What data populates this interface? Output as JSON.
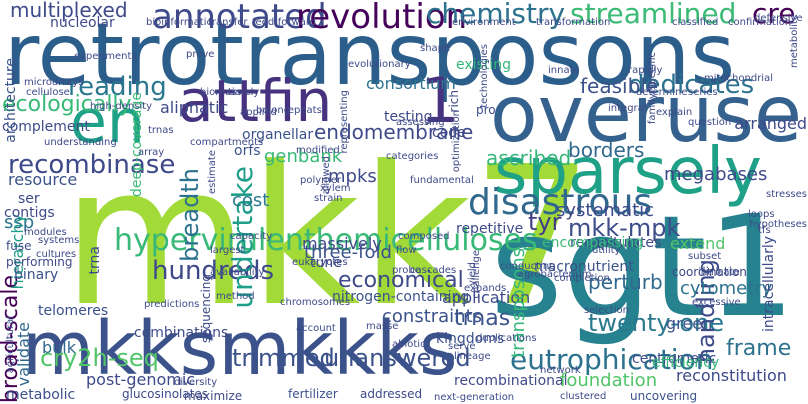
{
  "words": [
    {
      "text": "retrotransposons",
      "color": "#2c5e8c"
    },
    {
      "text": "mkk7",
      "color": "#a2da37"
    },
    {
      "text": "sgt1",
      "color": "#26828e"
    },
    {
      "text": "overuse",
      "color": "#34618d"
    },
    {
      "text": "mkksmkkks",
      "color": "#3b528b"
    },
    {
      "text": "sparsely",
      "color": "#1fa187"
    },
    {
      "text": "attfin",
      "color": "#46327e"
    },
    {
      "text": "en",
      "color": "#1fa187"
    },
    {
      "text": "1",
      "color": "#46327e"
    },
    {
      "text": "hypervirulenthemicelluloses",
      "color": "#38b977"
    },
    {
      "text": "disastrous",
      "color": "#31688e"
    },
    {
      "text": "annotated",
      "color": "#3e4a89"
    },
    {
      "text": "revolution",
      "color": "#44015a"
    },
    {
      "text": "chemistry",
      "color": "#2c728e"
    },
    {
      "text": "streamlined",
      "color": "#3bbb75"
    },
    {
      "text": "cre",
      "color": "#440154"
    },
    {
      "text": "reading",
      "color": "#29788e"
    },
    {
      "text": "dedicates",
      "color": "#2c728e"
    },
    {
      "text": "ecologically",
      "color": "#38b977"
    },
    {
      "text": "recombinase",
      "color": "#3e4989"
    },
    {
      "text": "hundreds",
      "color": "#3e4989"
    },
    {
      "text": "undertake",
      "color": "#1f9e89"
    },
    {
      "text": "mkk-mpk",
      "color": "#3d4d8a"
    },
    {
      "text": "tyr",
      "color": "#433d84"
    },
    {
      "text": "eutrophication",
      "color": "#2c728e"
    },
    {
      "text": "trimmed",
      "color": "#3b528b"
    },
    {
      "text": "unanswered",
      "color": "#3b528b"
    },
    {
      "text": "cry2h-seq",
      "color": "#52c569"
    },
    {
      "text": "twenty-one",
      "color": "#29788e"
    },
    {
      "text": "handling",
      "color": "#3e4a89"
    },
    {
      "text": "breadth",
      "color": "#2c728e"
    },
    {
      "text": "broad-scale",
      "color": "#440154"
    },
    {
      "text": "economical",
      "color": "#3e4a89"
    },
    {
      "text": "ascribed",
      "color": "#35b779"
    },
    {
      "text": "borders",
      "color": "#31688e"
    },
    {
      "text": "multiplexed",
      "color": "#3e4a89"
    },
    {
      "text": "feasible",
      "color": "#3b528b"
    },
    {
      "text": "endomembrane",
      "color": "#3e4a89"
    },
    {
      "text": "trnas",
      "color": "#3b528b"
    },
    {
      "text": "frame",
      "color": "#2c728e"
    },
    {
      "text": "constraints",
      "color": "#3b528b"
    },
    {
      "text": "perturb",
      "color": "#31688e"
    },
    {
      "text": "cytometry",
      "color": "#2c728e"
    },
    {
      "text": "systematic",
      "color": "#3e4a89"
    },
    {
      "text": "genbank",
      "color": "#38b977"
    },
    {
      "text": "three-fold",
      "color": "#3b528b"
    },
    {
      "text": "megabases",
      "color": "#3e4a89"
    },
    {
      "text": "cost",
      "color": "#29788e"
    },
    {
      "text": "mpks",
      "color": "#3e4a89"
    },
    {
      "text": "ssp",
      "color": "#2c728e"
    },
    {
      "text": "resource",
      "color": "#3b528b"
    },
    {
      "text": "hierarchy",
      "color": "#1f9e89"
    },
    {
      "text": "contigs",
      "color": "#3e4a89"
    },
    {
      "text": "complement",
      "color": "#3e4a89"
    },
    {
      "text": "bulk",
      "color": "#31688e"
    },
    {
      "text": "validate",
      "color": "#31688e"
    },
    {
      "text": "telomeres",
      "color": "#3b528b"
    },
    {
      "text": "post-genomic",
      "color": "#3e4a89"
    },
    {
      "text": "metabolic",
      "color": "#3b528b"
    },
    {
      "text": "application",
      "color": "#3e4a89"
    },
    {
      "text": "transposons",
      "color": "#35b779"
    },
    {
      "text": "extend",
      "color": "#52c569"
    },
    {
      "text": "green",
      "color": "#3b528b"
    },
    {
      "text": "centromeric",
      "color": "#3e4a89"
    },
    {
      "text": "recapitulates",
      "color": "#3e4a89"
    },
    {
      "text": "encompassing",
      "color": "#38b977"
    },
    {
      "text": "repetitive",
      "color": "#3e4a89"
    },
    {
      "text": "massively",
      "color": "#3e4a89"
    },
    {
      "text": "tune",
      "color": "#3e4a89"
    },
    {
      "text": "combinations",
      "color": "#3e4a89"
    },
    {
      "text": "organellar",
      "color": "#3b528b"
    },
    {
      "text": "orfs",
      "color": "#3b528b"
    },
    {
      "text": "aliphatic",
      "color": "#3e4a89"
    },
    {
      "text": "existing",
      "color": "#35b779"
    },
    {
      "text": "consortium",
      "color": "#2c728e"
    },
    {
      "text": "testing",
      "color": "#3e4a89"
    },
    {
      "text": "nucleolar",
      "color": "#3e4a89"
    },
    {
      "text": "architecture",
      "color": "#3b528b"
    },
    {
      "text": "deep-coverage",
      "color": "#3bbb75"
    },
    {
      "text": "nitrogen-containing",
      "color": "#3b528b"
    },
    {
      "text": "macronutrient",
      "color": "#3b528b"
    },
    {
      "text": "kingdoms",
      "color": "#3b528b"
    },
    {
      "text": "recombinational",
      "color": "#3e4a89"
    },
    {
      "text": "foundation",
      "color": "#52c569"
    },
    {
      "text": "reconstitution",
      "color": "#3e4a89"
    },
    {
      "text": "efficiency",
      "color": "#35b779"
    },
    {
      "text": "coordination",
      "color": "#3e4a89"
    },
    {
      "text": "ser",
      "color": "#3e4a89"
    },
    {
      "text": "binary",
      "color": "#3b528b"
    },
    {
      "text": "fuse",
      "color": "#3e4a89"
    },
    {
      "text": "performing",
      "color": "#3e4a89"
    },
    {
      "text": "trna",
      "color": "#3e4a89"
    },
    {
      "text": "sequencing",
      "color": "#3e4a89"
    },
    {
      "text": "code",
      "color": "#3e4a89"
    },
    {
      "text": "rich",
      "color": "#3e4a89"
    },
    {
      "text": "pro",
      "color": "#3e4a89"
    },
    {
      "text": "intracellularly",
      "color": "#3e4a89"
    },
    {
      "text": "addressed",
      "color": "#3e4a89"
    },
    {
      "text": "fertilizer",
      "color": "#3b528b"
    },
    {
      "text": "maximize",
      "color": "#3e4a89"
    },
    {
      "text": "glucosinolates",
      "color": "#3e4a89"
    },
    {
      "text": "uncovering",
      "color": "#3b528b"
    },
    {
      "text": "diversity",
      "color": "#3e4a89"
    },
    {
      "text": "subset",
      "color": "#3e4a89"
    },
    {
      "text": "intricate",
      "color": "#3e4a89"
    },
    {
      "text": "excessive",
      "color": "#3e4a89"
    },
    {
      "text": "clustered",
      "color": "#3e4a89"
    },
    {
      "text": "lineage",
      "color": "#3e4a89"
    },
    {
      "text": "network",
      "color": "#3e4a89"
    },
    {
      "text": "loops",
      "color": "#3e4a89"
    },
    {
      "text": "hypotheses",
      "color": "#3e4a89"
    },
    {
      "text": "tfs",
      "color": "#3e4a89"
    },
    {
      "text": "stresses",
      "color": "#3e4a89"
    },
    {
      "text": "arranged",
      "color": "#3e4a89"
    },
    {
      "text": "feed-forward",
      "color": "#3e4a89"
    },
    {
      "text": "bioinformatic",
      "color": "#3e4a89"
    },
    {
      "text": "transfer",
      "color": "#3e4a89"
    },
    {
      "text": "environment",
      "color": "#3e4a89"
    },
    {
      "text": "transformation",
      "color": "#3e4a89"
    },
    {
      "text": "classified",
      "color": "#3e4a89"
    },
    {
      "text": "confirmation",
      "color": "#3e4a89"
    },
    {
      "text": "defensive",
      "color": "#3e4a89"
    },
    {
      "text": "metabolite",
      "color": "#3e4a89"
    },
    {
      "text": "experiments",
      "color": "#3e4a89"
    },
    {
      "text": "prove",
      "color": "#3e4a89"
    },
    {
      "text": "shape",
      "color": "#3e4a89"
    },
    {
      "text": "technologies",
      "color": "#3e4a89"
    },
    {
      "text": "family-specific",
      "color": "#3e4a89"
    },
    {
      "text": "rapidly",
      "color": "#3e4a89"
    },
    {
      "text": "evolutionary",
      "color": "#3e4a89"
    },
    {
      "text": "innate",
      "color": "#3e4a89"
    },
    {
      "text": "mitochondrial",
      "color": "#3e4a89"
    },
    {
      "text": "determine",
      "color": "#3e4a89"
    },
    {
      "text": "series",
      "color": "#3e4a89"
    },
    {
      "text": "microarrays",
      "color": "#3e4a89"
    },
    {
      "text": "cellulose",
      "color": "#3e4a89"
    },
    {
      "text": "high-density",
      "color": "#3e4a89"
    },
    {
      "text": "trnas",
      "color": "#3e4a89"
    },
    {
      "text": "timely",
      "color": "#3e4a89"
    },
    {
      "text": "applied",
      "color": "#3e4a89"
    },
    {
      "text": "biomass",
      "color": "#3e4a89"
    },
    {
      "text": "belong",
      "color": "#3e4a89"
    },
    {
      "text": "repeats",
      "color": "#3e4a89"
    },
    {
      "text": "representing",
      "color": "#3e4a89"
    },
    {
      "text": "optimization",
      "color": "#3e4a89"
    },
    {
      "text": "assessing",
      "color": "#3e4a89"
    },
    {
      "text": "integral",
      "color": "#3e4a89"
    },
    {
      "text": "explain",
      "color": "#3e4a89"
    },
    {
      "text": "question",
      "color": "#3e4a89"
    },
    {
      "text": "understanding",
      "color": "#3e4a89"
    },
    {
      "text": "compartments",
      "color": "#3e4a89"
    },
    {
      "text": "array",
      "color": "#3e4a89"
    },
    {
      "text": "modified",
      "color": "#3e4a89"
    },
    {
      "text": "estimate",
      "color": "#3e4a89"
    },
    {
      "text": "capacity",
      "color": "#3e4a89"
    },
    {
      "text": "eukaryotes",
      "color": "#3e4a89"
    },
    {
      "text": "polymer",
      "color": "#3e4a89"
    },
    {
      "text": "xylem",
      "color": "#3e4a89"
    },
    {
      "text": "strain",
      "color": "#3e4a89"
    },
    {
      "text": "allowed",
      "color": "#3e4a89"
    },
    {
      "text": "categories",
      "color": "#3e4a89"
    },
    {
      "text": "fundamental",
      "color": "#3e4a89"
    },
    {
      "text": "composed",
      "color": "#3e4a89"
    },
    {
      "text": "cascades",
      "color": "#3e4a89"
    },
    {
      "text": "expands",
      "color": "#3e4a89"
    },
    {
      "text": "modules",
      "color": "#3e4a89"
    },
    {
      "text": "systems",
      "color": "#3e4a89"
    },
    {
      "text": "cultures",
      "color": "#3e4a89"
    },
    {
      "text": "largest",
      "color": "#3e4a89"
    },
    {
      "text": "availability",
      "color": "#3e4a89"
    },
    {
      "text": "flow",
      "color": "#3e4a89"
    },
    {
      "text": "probe",
      "color": "#3e4a89"
    },
    {
      "text": "challenge",
      "color": "#3e4a89"
    },
    {
      "text": "yield",
      "color": "#3e4a89"
    },
    {
      "text": "conducting",
      "color": "#3e4a89"
    },
    {
      "text": "agrobacterium",
      "color": "#3e4a89"
    },
    {
      "text": "utility",
      "color": "#3e4a89"
    },
    {
      "text": "completion",
      "color": "#3e4a89"
    },
    {
      "text": "method",
      "color": "#3e4a89"
    },
    {
      "text": "chromosomes",
      "color": "#3e4a89"
    },
    {
      "text": "account",
      "color": "#3e4a89"
    },
    {
      "text": "masse",
      "color": "#3e4a89"
    },
    {
      "text": "abiotic",
      "color": "#3e4a89"
    },
    {
      "text": "serve",
      "color": "#3e4a89"
    },
    {
      "text": "duplications",
      "color": "#3e4a89"
    },
    {
      "text": "selection",
      "color": "#3e4a89"
    },
    {
      "text": "agricultural",
      "color": "#3e4a89"
    },
    {
      "text": "predictions",
      "color": "#3e4a89"
    },
    {
      "text": "next-generation",
      "color": "#3e4a89"
    },
    {
      "text": "tandem",
      "color": "#3e4a89"
    }
  ]
}
